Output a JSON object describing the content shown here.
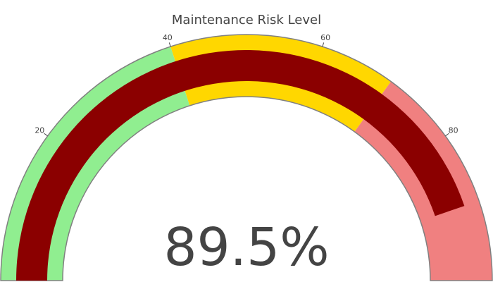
{
  "chart_data": {
    "type": "gauge",
    "title": "Maintenance Risk Level",
    "value": 89.5,
    "value_display": "89.5%",
    "range": [
      0,
      100
    ],
    "ticks": [
      {
        "value": 20,
        "label": "20"
      },
      {
        "value": 40,
        "label": "40"
      },
      {
        "value": 60,
        "label": "60"
      },
      {
        "value": 80,
        "label": "80"
      }
    ],
    "steps": [
      {
        "range": [
          0,
          40
        ],
        "color": "#90ee90"
      },
      {
        "range": [
          40,
          70
        ],
        "color": "#ffd700"
      },
      {
        "range": [
          70,
          100
        ],
        "color": "#f08080"
      }
    ],
    "bar_color": "#8b0000",
    "border_color": "#808080"
  }
}
